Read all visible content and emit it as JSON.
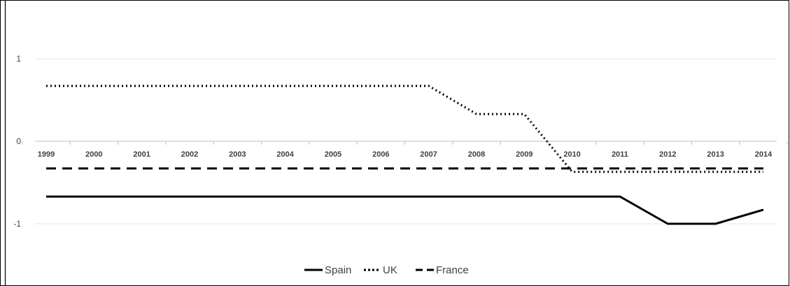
{
  "chart_data": {
    "type": "line",
    "categories": [
      "1999",
      "2000",
      "2001",
      "2002",
      "2003",
      "2004",
      "2005",
      "2006",
      "2007",
      "2008",
      "2009",
      "2010",
      "2011",
      "2012",
      "2013",
      "2014"
    ],
    "yticks": [
      "1",
      "0",
      "-1"
    ],
    "ylim": [
      -1.67,
      1.67
    ],
    "grid": true,
    "legend_position": "bottom",
    "series": [
      {
        "name": "Spain",
        "style": "solid",
        "values": [
          -0.67,
          -0.67,
          -0.67,
          -0.67,
          -0.67,
          -0.67,
          -0.67,
          -0.67,
          -0.67,
          -0.67,
          -0.67,
          -0.67,
          -0.67,
          -1.0,
          -1.0,
          -0.83
        ]
      },
      {
        "name": "UK",
        "style": "dotted",
        "values": [
          0.67,
          0.67,
          0.67,
          0.67,
          0.67,
          0.67,
          0.67,
          0.67,
          0.67,
          0.33,
          0.33,
          -0.37,
          -0.37,
          -0.37,
          -0.37,
          -0.37
        ]
      },
      {
        "name": "France",
        "style": "dashed",
        "values": [
          -0.33,
          -0.33,
          -0.33,
          -0.33,
          -0.33,
          -0.33,
          -0.33,
          -0.33,
          -0.33,
          -0.33,
          -0.33,
          -0.33,
          -0.33,
          -0.33,
          -0.33,
          -0.33
        ]
      }
    ],
    "colors": {
      "line": "#000000",
      "grid": "#e6e6e6",
      "axis": "#bfbfbf",
      "border": "#000000"
    }
  }
}
